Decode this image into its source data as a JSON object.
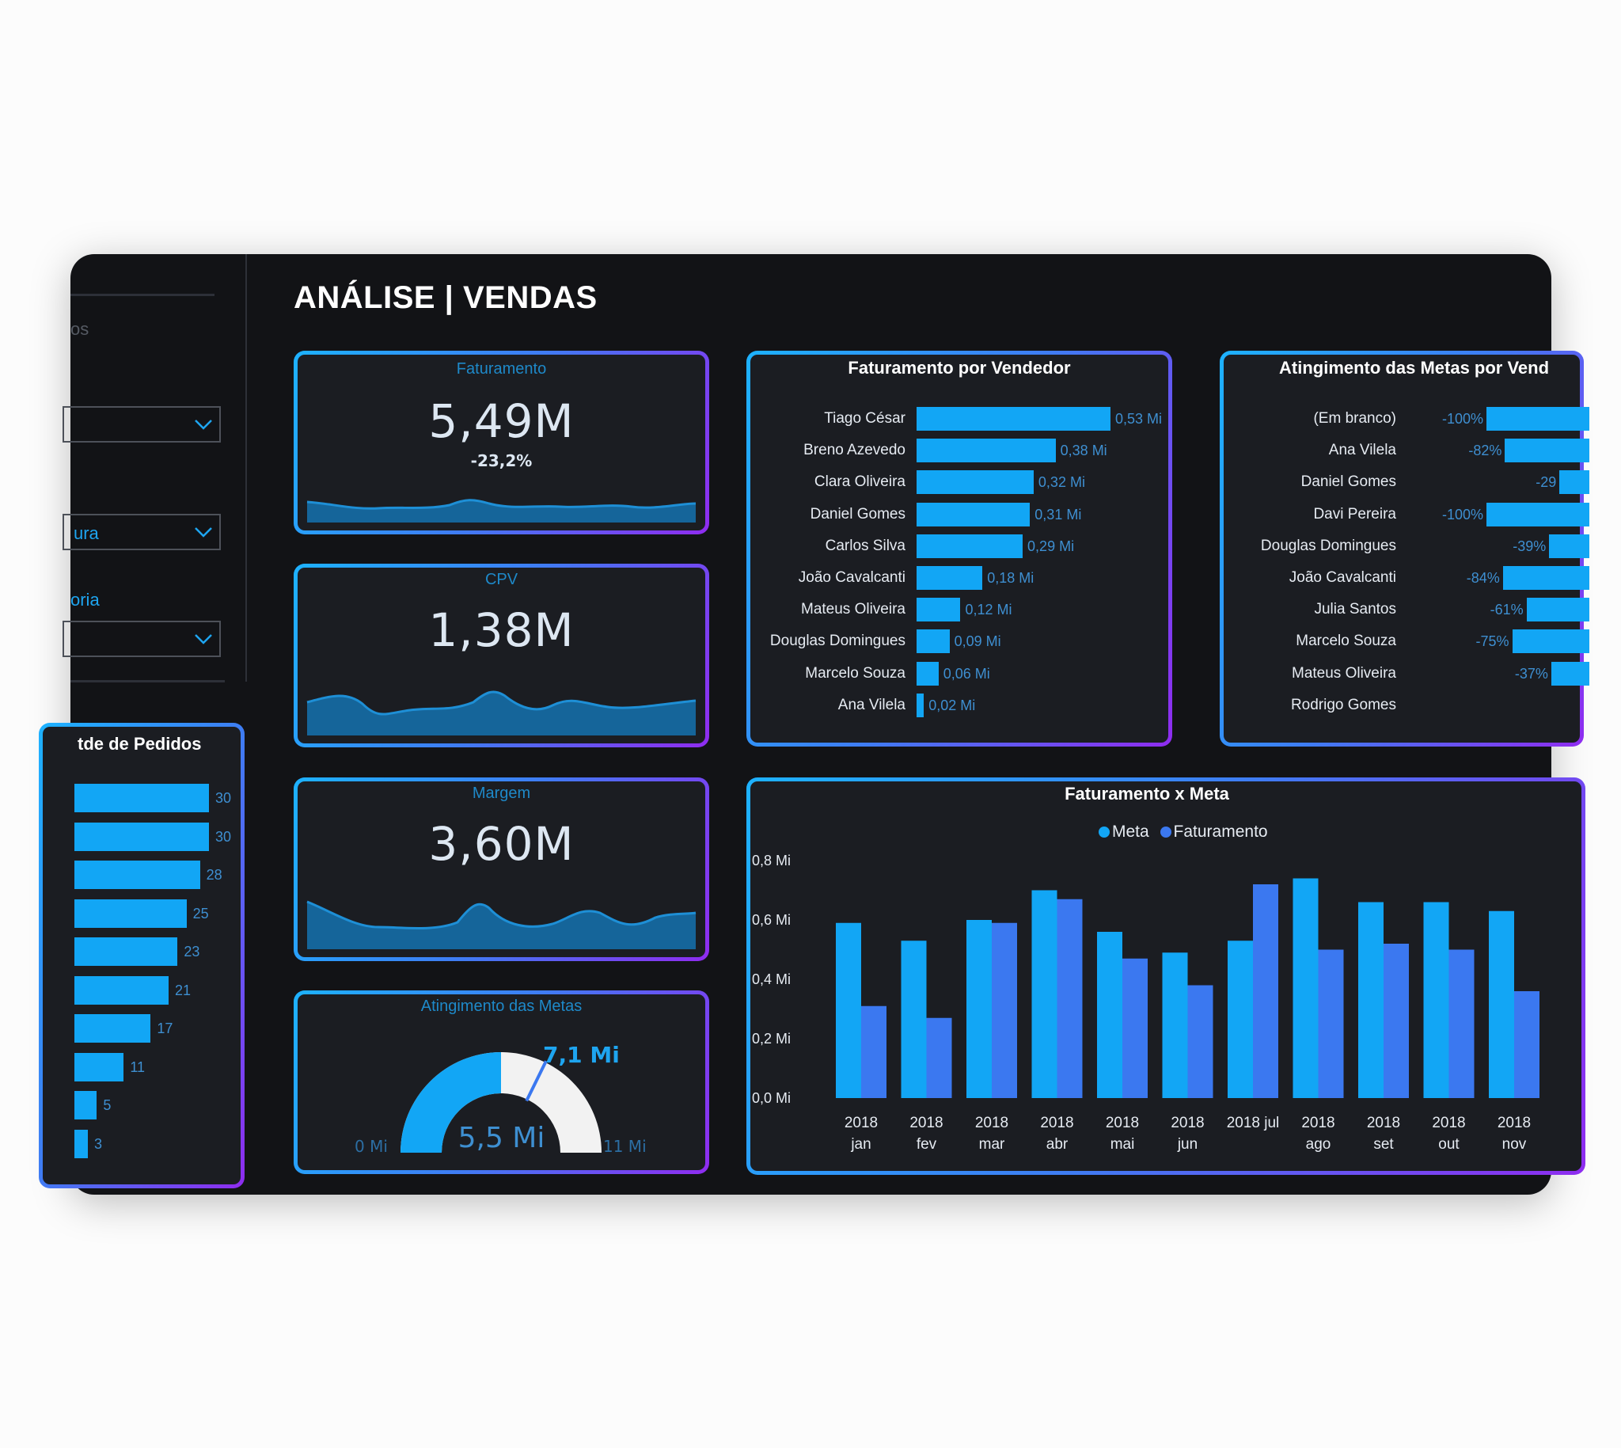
{
  "colors": {
    "accent": "#12a6f5",
    "meta": "#12a6f5",
    "faturamento": "#3b78f0",
    "card_bg": "#121316",
    "panel_bg": "#1b1d22"
  },
  "page_title": "ANÁLISE | VENDAS",
  "sidebar": {
    "label_top": "os",
    "slicer2_text": "ura",
    "label_3": "oria"
  },
  "kpis": {
    "faturamento": {
      "title": "Faturamento",
      "value": "5,49M",
      "delta": "-23,2%"
    },
    "cpv": {
      "title": "CPV",
      "value": "1,38M"
    },
    "margem": {
      "title": "Margem",
      "value": "3,60M"
    }
  },
  "gauge": {
    "title": "Atingimento das Metas",
    "value_label": "5,5 Mi",
    "target_label": "7,1 Mi",
    "min_label": "0 Mi",
    "max_label": "11 Mi",
    "value": 5.5,
    "target": 7.1,
    "min": 0,
    "max": 11
  },
  "pedidos": {
    "title": "tde de Pedidos",
    "values": [
      30,
      30,
      28,
      25,
      23,
      21,
      17,
      11,
      5,
      3
    ]
  },
  "vendedor": {
    "title": "Faturamento por Vendedor",
    "rows": [
      {
        "name": "Tiago César",
        "value": 0.53,
        "label": "0,53 Mi"
      },
      {
        "name": "Breno Azevedo",
        "value": 0.38,
        "label": "0,38 Mi"
      },
      {
        "name": "Clara Oliveira",
        "value": 0.32,
        "label": "0,32 Mi"
      },
      {
        "name": "Daniel Gomes",
        "value": 0.31,
        "label": "0,31 Mi"
      },
      {
        "name": "Carlos Silva",
        "value": 0.29,
        "label": "0,29 Mi"
      },
      {
        "name": "João Cavalcanti",
        "value": 0.18,
        "label": "0,18 Mi"
      },
      {
        "name": "Mateus Oliveira",
        "value": 0.12,
        "label": "0,12 Mi"
      },
      {
        "name": "Douglas Domingues",
        "value": 0.09,
        "label": "0,09 Mi"
      },
      {
        "name": "Marcelo Souza",
        "value": 0.06,
        "label": "0,06 Mi"
      },
      {
        "name": "Ana Vilela",
        "value": 0.02,
        "label": "0,02 Mi"
      }
    ]
  },
  "metas": {
    "title": "Atingimento das Metas por Vend",
    "rows": [
      {
        "name": "(Em branco)",
        "label": "-100%",
        "value": -100
      },
      {
        "name": "Ana Vilela",
        "label": "-82%",
        "value": -82
      },
      {
        "name": "Daniel Gomes",
        "label": "-29",
        "value": -29
      },
      {
        "name": "Davi Pereira",
        "label": "-100%",
        "value": -100
      },
      {
        "name": "Douglas Domingues",
        "label": "-39%",
        "value": -39
      },
      {
        "name": "João Cavalcanti",
        "label": "-84%",
        "value": -84
      },
      {
        "name": "Julia Santos",
        "label": "-61%",
        "value": -61
      },
      {
        "name": "Marcelo Souza",
        "label": "-75%",
        "value": -75
      },
      {
        "name": "Mateus Oliveira",
        "label": "-37%",
        "value": -37
      },
      {
        "name": "Rodrigo Gomes",
        "label": "",
        "value": 0
      }
    ]
  },
  "chart_data": {
    "type": "bar",
    "title": "Faturamento x Meta",
    "legend_position": "top-center",
    "categories": [
      [
        "2018",
        "jan"
      ],
      [
        "2018",
        "fev"
      ],
      [
        "2018",
        "mar"
      ],
      [
        "2018",
        "abr"
      ],
      [
        "2018",
        "mai"
      ],
      [
        "2018",
        "jun"
      ],
      [
        "2018 jul"
      ],
      [
        "2018",
        "ago"
      ],
      [
        "2018",
        "set"
      ],
      [
        "2018",
        "out"
      ],
      [
        "2018",
        "nov"
      ]
    ],
    "series": [
      {
        "name": "Meta",
        "values": [
          0.59,
          0.53,
          0.6,
          0.7,
          0.56,
          0.49,
          0.53,
          0.74,
          0.66,
          0.66,
          0.63
        ]
      },
      {
        "name": "Faturamento",
        "values": [
          0.31,
          0.27,
          0.59,
          0.67,
          0.47,
          0.38,
          0.72,
          0.5,
          0.52,
          0.5,
          0.36
        ]
      }
    ],
    "y_ticks": [
      "0,0 Mi",
      "0,2 Mi",
      "0,4 Mi",
      "0,6 Mi",
      "0,8 Mi"
    ],
    "ylim": [
      0,
      0.8
    ]
  }
}
